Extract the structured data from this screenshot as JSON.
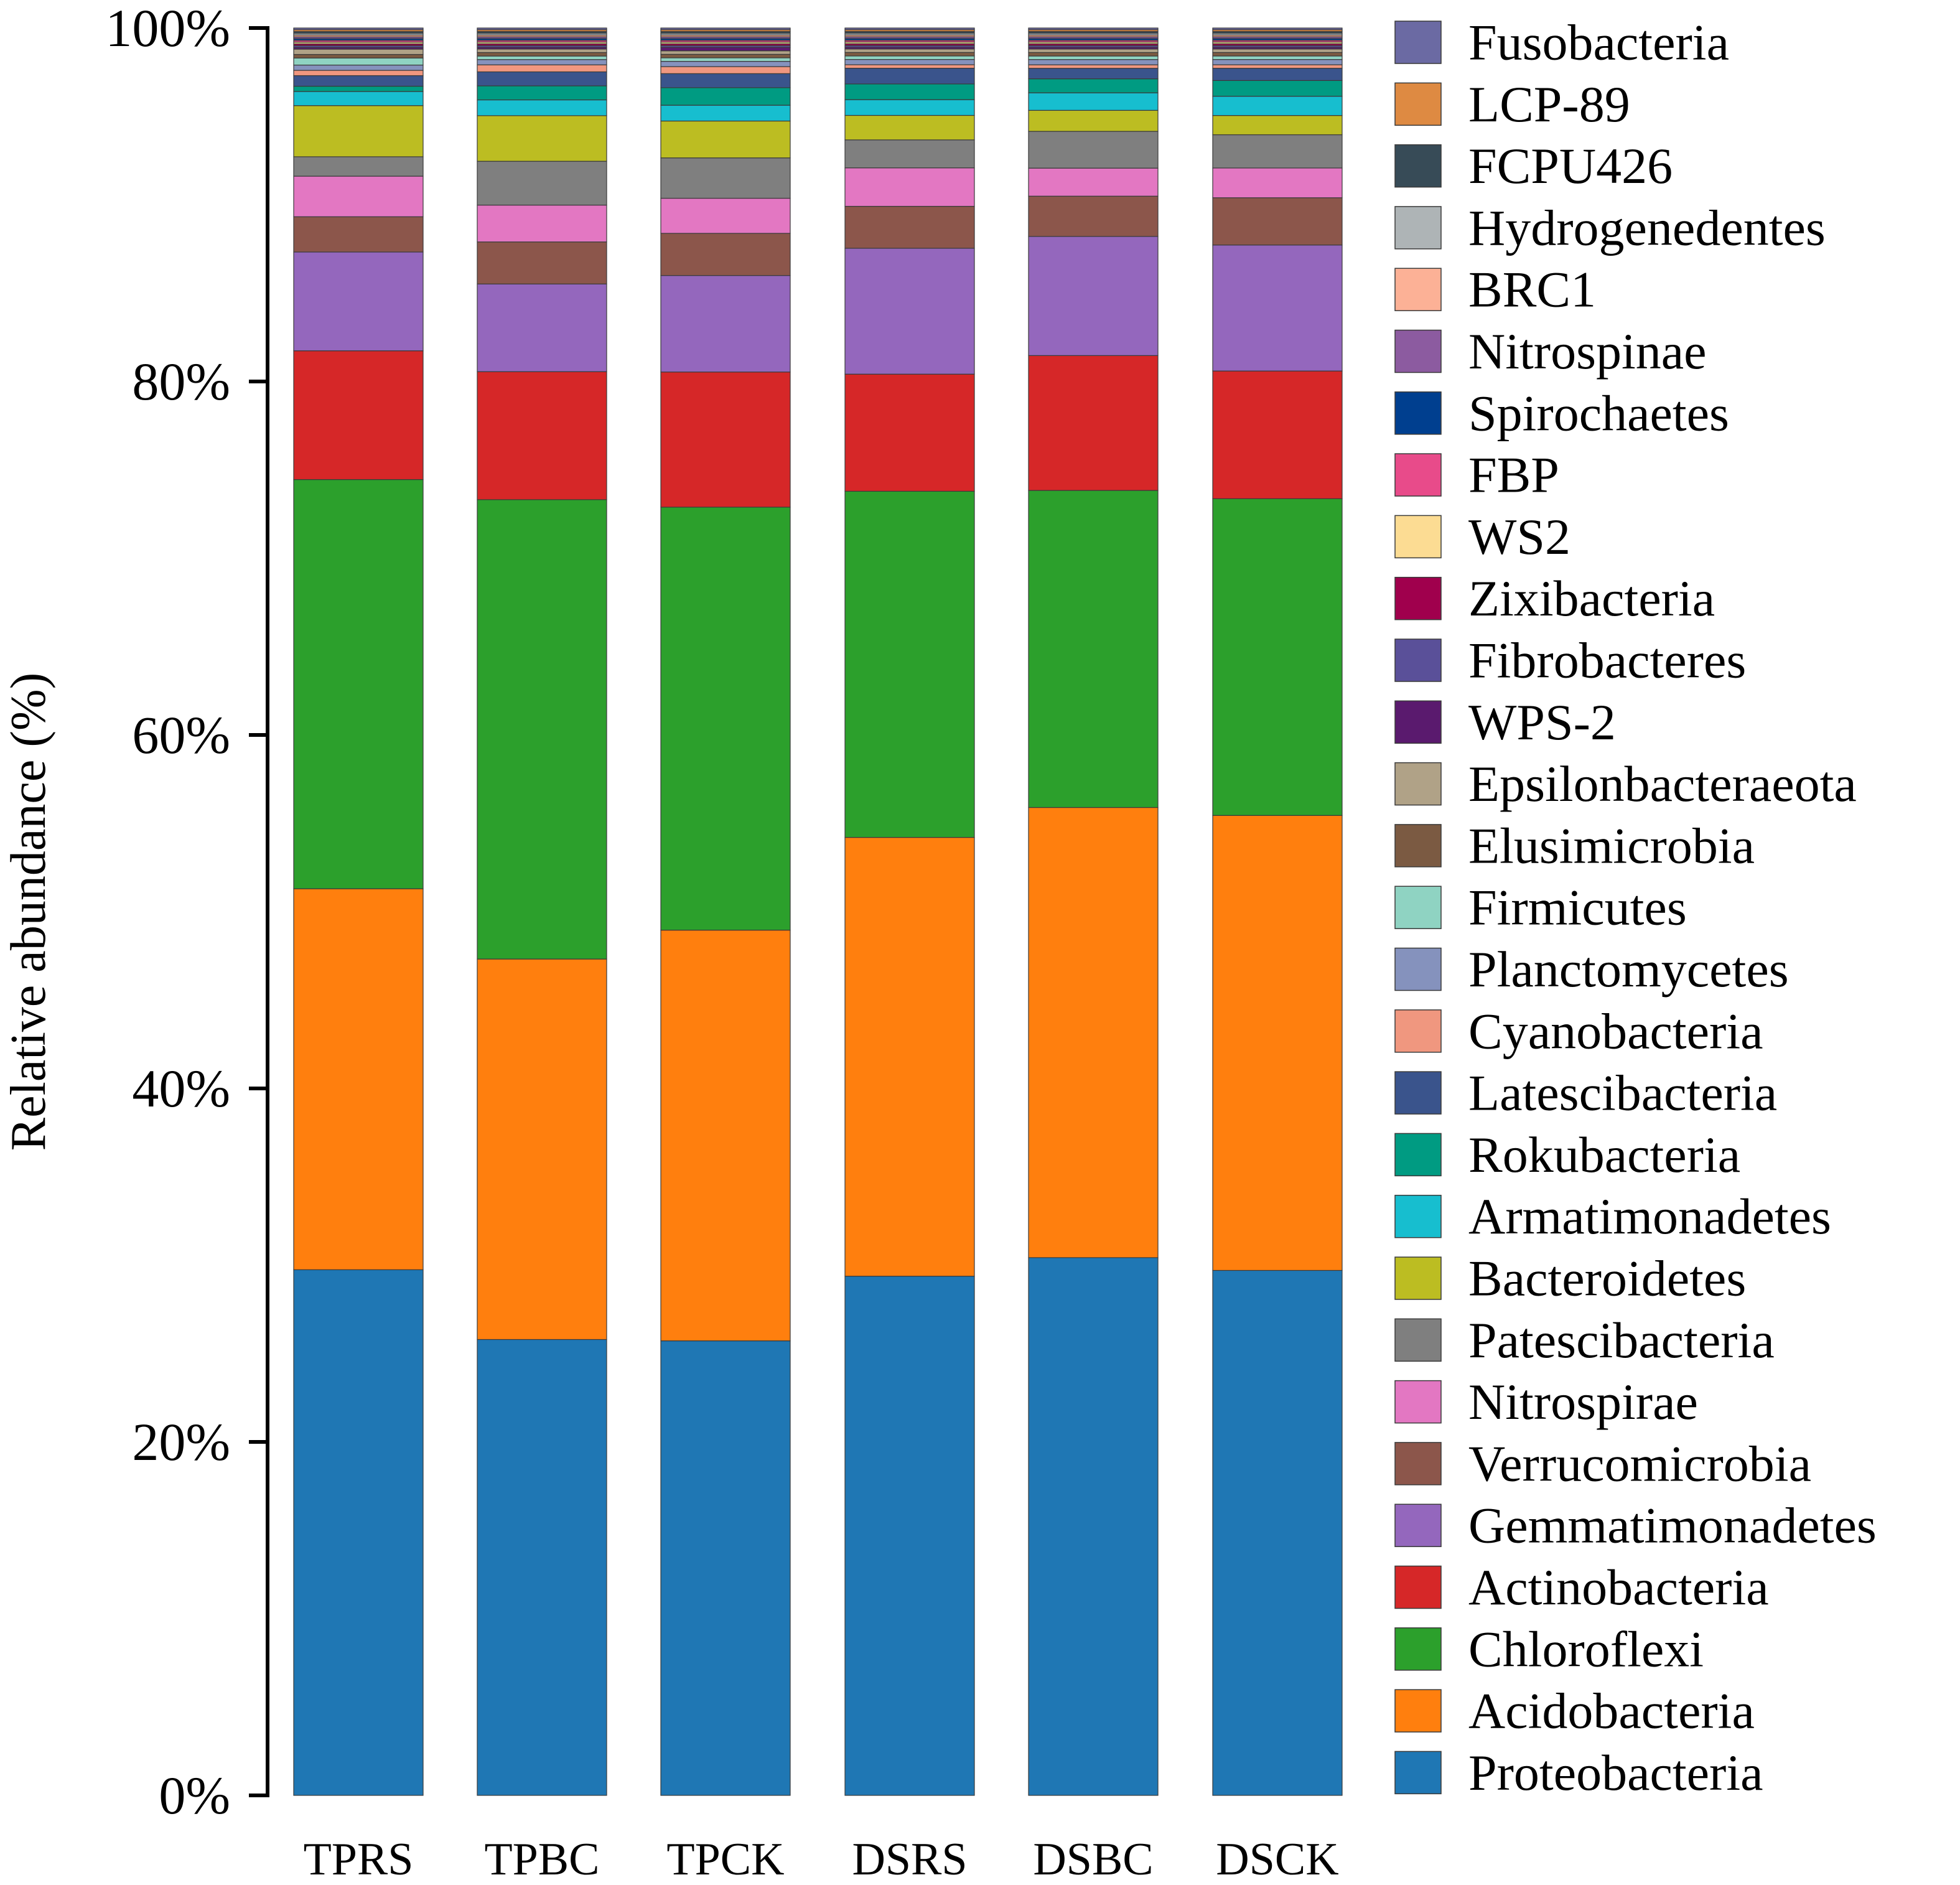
{
  "chart_data": {
    "type": "bar",
    "stacked": true,
    "title": "",
    "xlabel": "",
    "ylabel": "Relative abundance (%)",
    "ylim": [
      0,
      100
    ],
    "ytick_labels": [
      "0%",
      "20%",
      "40%",
      "60%",
      "80%",
      "100%"
    ],
    "ytick_values": [
      0,
      20,
      40,
      60,
      80,
      100
    ],
    "legend_position": "right",
    "categories": [
      "TPRS",
      "TPBC",
      "TPCK",
      "DSRS",
      "DSBC",
      "DSCK"
    ],
    "series": [
      {
        "name": "Proteobacteria",
        "color": "#1f77b4",
        "values": [
          29.8,
          26.0,
          25.9,
          29.7,
          30.7,
          30.0
        ]
      },
      {
        "name": "Acidobacteria",
        "color": "#ff7f0e",
        "values": [
          21.6,
          21.7,
          23.4,
          25.1,
          25.7,
          26.0
        ]
      },
      {
        "name": "Chloroflexi",
        "color": "#2ca02c",
        "values": [
          23.2,
          26.2,
          24.1,
          19.8,
          18.1,
          18.1
        ]
      },
      {
        "name": "Actinobacteria",
        "color": "#d62728",
        "values": [
          7.3,
          7.3,
          7.7,
          6.7,
          7.7,
          7.3
        ]
      },
      {
        "name": "Gemmatimonadetes",
        "color": "#9467bd",
        "values": [
          5.6,
          5.0,
          5.5,
          7.2,
          6.8,
          7.2
        ]
      },
      {
        "name": "Verrucomicrobia",
        "color": "#8c564b",
        "values": [
          2.0,
          2.4,
          2.4,
          2.4,
          2.3,
          2.7
        ]
      },
      {
        "name": "Nitrospirae",
        "color": "#e377c2",
        "values": [
          2.3,
          2.1,
          2.0,
          2.2,
          1.6,
          1.7
        ]
      },
      {
        "name": "Patescibacteria",
        "color": "#7f7f7f",
        "values": [
          1.1,
          2.5,
          2.3,
          1.6,
          2.1,
          1.9
        ]
      },
      {
        "name": "Bacteroidetes",
        "color": "#bcbd22",
        "values": [
          2.9,
          2.6,
          2.1,
          1.4,
          1.2,
          1.1
        ]
      },
      {
        "name": "Armatimonadetes",
        "color": "#17becf",
        "values": [
          0.8,
          0.9,
          0.9,
          0.9,
          1.0,
          1.1
        ]
      },
      {
        "name": "Rokubacteria",
        "color": "#009b82",
        "values": [
          0.3,
          0.8,
          1.0,
          0.9,
          0.8,
          0.9
        ]
      },
      {
        "name": "Latescibacteria",
        "color": "#3a548c",
        "values": [
          0.6,
          0.8,
          0.8,
          0.9,
          0.6,
          0.7
        ]
      },
      {
        "name": "Cyanobacteria",
        "color": "#f0977f",
        "values": [
          0.3,
          0.4,
          0.4,
          0.2,
          0.2,
          0.2
        ]
      },
      {
        "name": "Planctomycetes",
        "color": "#8592bd",
        "values": [
          0.3,
          0.3,
          0.3,
          0.3,
          0.3,
          0.3
        ]
      },
      {
        "name": "Firmicutes",
        "color": "#8fd3c2",
        "values": [
          0.4,
          0.2,
          0.2,
          0.2,
          0.2,
          0.2
        ]
      },
      {
        "name": "Elusimicrobia",
        "color": "#7b5a42",
        "values": [
          0.2,
          0.2,
          0.2,
          0.2,
          0.2,
          0.2
        ]
      },
      {
        "name": "Epsilonbacteraeota",
        "color": "#b0a287",
        "values": [
          0.3,
          0.2,
          0.2,
          0.2,
          0.2,
          0.2
        ]
      },
      {
        "name": "WPS-2",
        "color": "#5a1a6e",
        "values": [
          0.1,
          0.1,
          0.2,
          0.1,
          0.1,
          0.1
        ]
      },
      {
        "name": "Fibrobacteres",
        "color": "#5a5099",
        "values": [
          0.1,
          0.1,
          0.1,
          0.1,
          0.1,
          0.1
        ]
      },
      {
        "name": "Zixibacteria",
        "color": "#a0004d",
        "values": [
          0.1,
          0.1,
          0.1,
          0.1,
          0.1,
          0.1
        ]
      },
      {
        "name": "WS2",
        "color": "#fcdc93",
        "values": [
          0.1,
          0.1,
          0.1,
          0.1,
          0.1,
          0.1
        ]
      },
      {
        "name": "FBP",
        "color": "#e84b8a",
        "values": [
          0.1,
          0.1,
          0.1,
          0.1,
          0.1,
          0.1
        ]
      },
      {
        "name": "Spirochaetes",
        "color": "#003f8f",
        "values": [
          0.1,
          0.1,
          0.1,
          0.1,
          0.1,
          0.1
        ]
      },
      {
        "name": "Nitrospinae",
        "color": "#8c5ba0",
        "values": [
          0.1,
          0.1,
          0.1,
          0.1,
          0.1,
          0.1
        ]
      },
      {
        "name": "BRC1",
        "color": "#fcb196",
        "values": [
          0.1,
          0.1,
          0.1,
          0.1,
          0.1,
          0.1
        ]
      },
      {
        "name": "Hydrogenedentes",
        "color": "#aeb4b6",
        "values": [
          0.1,
          0.1,
          0.1,
          0.1,
          0.1,
          0.1
        ]
      },
      {
        "name": "FCPU426",
        "color": "#374b57",
        "values": [
          0.1,
          0.1,
          0.1,
          0.1,
          0.1,
          0.1
        ]
      },
      {
        "name": "LCP-89",
        "color": "#de8a42",
        "values": [
          0.1,
          0.1,
          0.1,
          0.1,
          0.1,
          0.1
        ]
      },
      {
        "name": "Fusobacteria",
        "color": "#6b6aa3",
        "values": [
          0.1,
          0.1,
          0.1,
          0.1,
          0.1,
          0.1
        ]
      }
    ]
  }
}
